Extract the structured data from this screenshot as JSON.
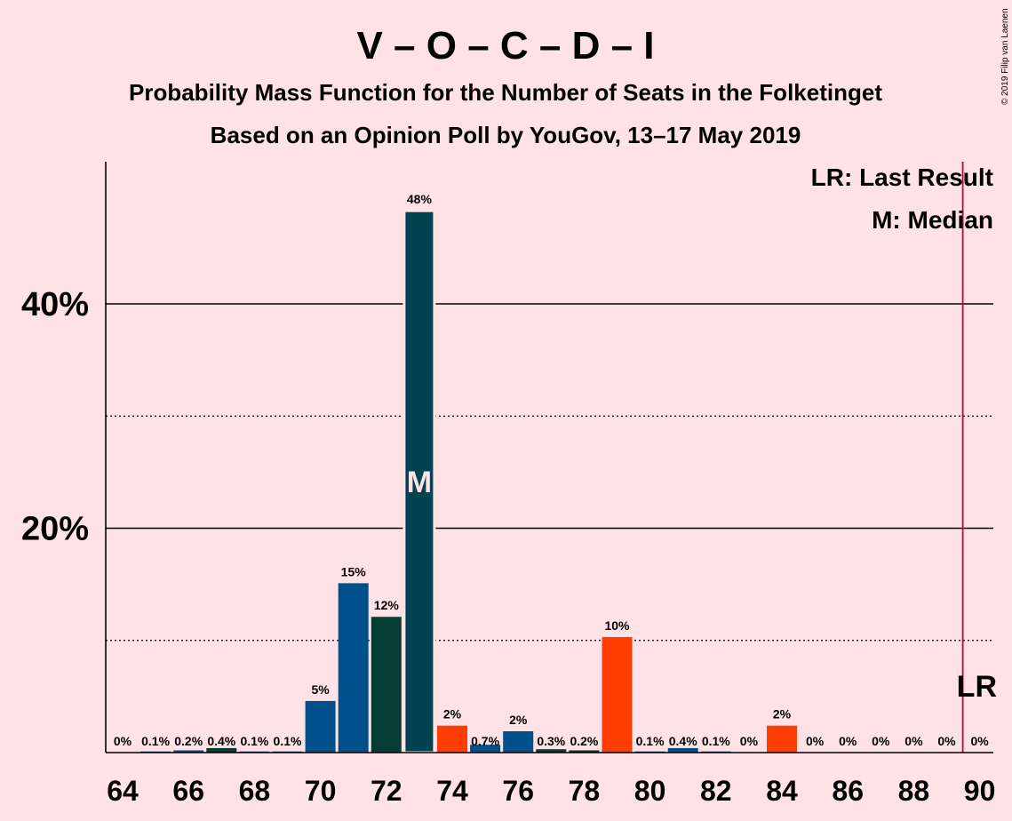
{
  "chart_data": {
    "type": "bar",
    "title": "V – O – C – D – I",
    "subtitle1": "Probability Mass Function for the Number of Seats in the Folketinget",
    "subtitle2": "Based on an Opinion Poll by YouGov, 13–17 May 2019",
    "copyright": "© 2019 Filip van Laenen",
    "legend": {
      "lr": "LR: Last Result",
      "m": "M: Median",
      "placement": "top-right"
    },
    "median_marker": "M",
    "last_result_marker": "LR",
    "last_result_seat": 90,
    "median_seat": 73,
    "ylim": [
      0,
      52
    ],
    "y_ticks": [
      {
        "value": 20,
        "label": "20%"
      },
      {
        "value": 40,
        "label": "40%"
      }
    ],
    "y_grid_solid": [
      20,
      40
    ],
    "y_grid_dotted": [
      10,
      30
    ],
    "x_ticks": [
      64,
      66,
      68,
      70,
      72,
      74,
      76,
      78,
      80,
      82,
      84,
      86,
      88,
      90
    ],
    "colors": {
      "background": "#ffe2e6",
      "V": "#00508c",
      "C": "#063d33",
      "O": "#02434f",
      "orange": "#ff3d00",
      "lr_line": "#c8003c",
      "grid": "#000000"
    },
    "bars": [
      {
        "seat": 64,
        "value": 0,
        "label": "0%",
        "color": "#00508c"
      },
      {
        "seat": 65,
        "value": 0.1,
        "label": "0.1%",
        "color": "#00508c"
      },
      {
        "seat": 66,
        "value": 0.2,
        "label": "0.2%",
        "color": "#00508c"
      },
      {
        "seat": 67,
        "value": 0.4,
        "label": "0.4%",
        "color": "#063d33"
      },
      {
        "seat": 68,
        "value": 0.1,
        "label": "0.1%",
        "color": "#00508c"
      },
      {
        "seat": 69,
        "value": 0.1,
        "label": "0.1%",
        "color": "#00508c"
      },
      {
        "seat": 70,
        "value": 4.6,
        "label": "5%",
        "color": "#00508c"
      },
      {
        "seat": 71,
        "value": 15.1,
        "label": "15%",
        "color": "#00508c"
      },
      {
        "seat": 72,
        "value": 12.1,
        "label": "12%",
        "color": "#063d33"
      },
      {
        "seat": 73,
        "value": 48.3,
        "label": "48%",
        "color": "#02434f"
      },
      {
        "seat": 74,
        "value": 2.4,
        "label": "2%",
        "color": "#ff3d00"
      },
      {
        "seat": 75,
        "value": 0.7,
        "label": "0.7%",
        "color": "#00508c"
      },
      {
        "seat": 76,
        "value": 1.9,
        "label": "2%",
        "color": "#00508c"
      },
      {
        "seat": 77,
        "value": 0.3,
        "label": "0.3%",
        "color": "#063d33"
      },
      {
        "seat": 78,
        "value": 0.2,
        "label": "0.2%",
        "color": "#063d33"
      },
      {
        "seat": 79,
        "value": 10.3,
        "label": "10%",
        "color": "#ff3d00"
      },
      {
        "seat": 80,
        "value": 0.1,
        "label": "0.1%",
        "color": "#00508c"
      },
      {
        "seat": 81,
        "value": 0.4,
        "label": "0.4%",
        "color": "#00508c"
      },
      {
        "seat": 82,
        "value": 0.1,
        "label": "0.1%",
        "color": "#00508c"
      },
      {
        "seat": 83,
        "value": 0,
        "label": "0%",
        "color": "#00508c"
      },
      {
        "seat": 84,
        "value": 2.4,
        "label": "2%",
        "color": "#ff3d00"
      },
      {
        "seat": 85,
        "value": 0,
        "label": "0%",
        "color": "#00508c"
      },
      {
        "seat": 86,
        "value": 0,
        "label": "0%",
        "color": "#00508c"
      },
      {
        "seat": 87,
        "value": 0,
        "label": "0%",
        "color": "#00508c"
      },
      {
        "seat": 88,
        "value": 0,
        "label": "0%",
        "color": "#00508c"
      },
      {
        "seat": 89,
        "value": 0,
        "label": "0%",
        "color": "#00508c"
      },
      {
        "seat": 90,
        "value": 0,
        "label": "0%",
        "color": "#00508c"
      }
    ]
  }
}
